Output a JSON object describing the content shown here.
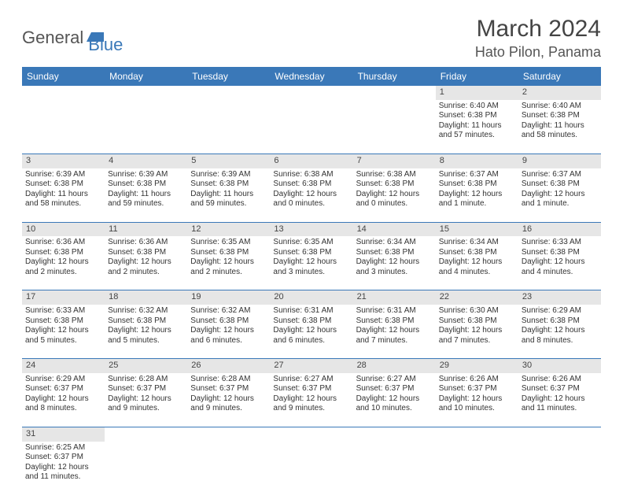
{
  "logo": {
    "part1": "General",
    "part2": "Blue"
  },
  "title": "March 2024",
  "location": "Hato Pilon, Panama",
  "colors": {
    "header_bg": "#3a78b8",
    "header_text": "#ffffff",
    "daynum_bg": "#e6e6e6",
    "border": "#3a78b8",
    "text": "#333333"
  },
  "day_headers": [
    "Sunday",
    "Monday",
    "Tuesday",
    "Wednesday",
    "Thursday",
    "Friday",
    "Saturday"
  ],
  "weeks": [
    [
      {
        "blank": true
      },
      {
        "blank": true
      },
      {
        "blank": true
      },
      {
        "blank": true
      },
      {
        "blank": true
      },
      {
        "num": "1",
        "sunrise": "Sunrise: 6:40 AM",
        "sunset": "Sunset: 6:38 PM",
        "daylight": "Daylight: 11 hours and 57 minutes."
      },
      {
        "num": "2",
        "sunrise": "Sunrise: 6:40 AM",
        "sunset": "Sunset: 6:38 PM",
        "daylight": "Daylight: 11 hours and 58 minutes."
      }
    ],
    [
      {
        "num": "3",
        "sunrise": "Sunrise: 6:39 AM",
        "sunset": "Sunset: 6:38 PM",
        "daylight": "Daylight: 11 hours and 58 minutes."
      },
      {
        "num": "4",
        "sunrise": "Sunrise: 6:39 AM",
        "sunset": "Sunset: 6:38 PM",
        "daylight": "Daylight: 11 hours and 59 minutes."
      },
      {
        "num": "5",
        "sunrise": "Sunrise: 6:39 AM",
        "sunset": "Sunset: 6:38 PM",
        "daylight": "Daylight: 11 hours and 59 minutes."
      },
      {
        "num": "6",
        "sunrise": "Sunrise: 6:38 AM",
        "sunset": "Sunset: 6:38 PM",
        "daylight": "Daylight: 12 hours and 0 minutes."
      },
      {
        "num": "7",
        "sunrise": "Sunrise: 6:38 AM",
        "sunset": "Sunset: 6:38 PM",
        "daylight": "Daylight: 12 hours and 0 minutes."
      },
      {
        "num": "8",
        "sunrise": "Sunrise: 6:37 AM",
        "sunset": "Sunset: 6:38 PM",
        "daylight": "Daylight: 12 hours and 1 minute."
      },
      {
        "num": "9",
        "sunrise": "Sunrise: 6:37 AM",
        "sunset": "Sunset: 6:38 PM",
        "daylight": "Daylight: 12 hours and 1 minute."
      }
    ],
    [
      {
        "num": "10",
        "sunrise": "Sunrise: 6:36 AM",
        "sunset": "Sunset: 6:38 PM",
        "daylight": "Daylight: 12 hours and 2 minutes."
      },
      {
        "num": "11",
        "sunrise": "Sunrise: 6:36 AM",
        "sunset": "Sunset: 6:38 PM",
        "daylight": "Daylight: 12 hours and 2 minutes."
      },
      {
        "num": "12",
        "sunrise": "Sunrise: 6:35 AM",
        "sunset": "Sunset: 6:38 PM",
        "daylight": "Daylight: 12 hours and 2 minutes."
      },
      {
        "num": "13",
        "sunrise": "Sunrise: 6:35 AM",
        "sunset": "Sunset: 6:38 PM",
        "daylight": "Daylight: 12 hours and 3 minutes."
      },
      {
        "num": "14",
        "sunrise": "Sunrise: 6:34 AM",
        "sunset": "Sunset: 6:38 PM",
        "daylight": "Daylight: 12 hours and 3 minutes."
      },
      {
        "num": "15",
        "sunrise": "Sunrise: 6:34 AM",
        "sunset": "Sunset: 6:38 PM",
        "daylight": "Daylight: 12 hours and 4 minutes."
      },
      {
        "num": "16",
        "sunrise": "Sunrise: 6:33 AM",
        "sunset": "Sunset: 6:38 PM",
        "daylight": "Daylight: 12 hours and 4 minutes."
      }
    ],
    [
      {
        "num": "17",
        "sunrise": "Sunrise: 6:33 AM",
        "sunset": "Sunset: 6:38 PM",
        "daylight": "Daylight: 12 hours and 5 minutes."
      },
      {
        "num": "18",
        "sunrise": "Sunrise: 6:32 AM",
        "sunset": "Sunset: 6:38 PM",
        "daylight": "Daylight: 12 hours and 5 minutes."
      },
      {
        "num": "19",
        "sunrise": "Sunrise: 6:32 AM",
        "sunset": "Sunset: 6:38 PM",
        "daylight": "Daylight: 12 hours and 6 minutes."
      },
      {
        "num": "20",
        "sunrise": "Sunrise: 6:31 AM",
        "sunset": "Sunset: 6:38 PM",
        "daylight": "Daylight: 12 hours and 6 minutes."
      },
      {
        "num": "21",
        "sunrise": "Sunrise: 6:31 AM",
        "sunset": "Sunset: 6:38 PM",
        "daylight": "Daylight: 12 hours and 7 minutes."
      },
      {
        "num": "22",
        "sunrise": "Sunrise: 6:30 AM",
        "sunset": "Sunset: 6:38 PM",
        "daylight": "Daylight: 12 hours and 7 minutes."
      },
      {
        "num": "23",
        "sunrise": "Sunrise: 6:29 AM",
        "sunset": "Sunset: 6:38 PM",
        "daylight": "Daylight: 12 hours and 8 minutes."
      }
    ],
    [
      {
        "num": "24",
        "sunrise": "Sunrise: 6:29 AM",
        "sunset": "Sunset: 6:37 PM",
        "daylight": "Daylight: 12 hours and 8 minutes."
      },
      {
        "num": "25",
        "sunrise": "Sunrise: 6:28 AM",
        "sunset": "Sunset: 6:37 PM",
        "daylight": "Daylight: 12 hours and 9 minutes."
      },
      {
        "num": "26",
        "sunrise": "Sunrise: 6:28 AM",
        "sunset": "Sunset: 6:37 PM",
        "daylight": "Daylight: 12 hours and 9 minutes."
      },
      {
        "num": "27",
        "sunrise": "Sunrise: 6:27 AM",
        "sunset": "Sunset: 6:37 PM",
        "daylight": "Daylight: 12 hours and 9 minutes."
      },
      {
        "num": "28",
        "sunrise": "Sunrise: 6:27 AM",
        "sunset": "Sunset: 6:37 PM",
        "daylight": "Daylight: 12 hours and 10 minutes."
      },
      {
        "num": "29",
        "sunrise": "Sunrise: 6:26 AM",
        "sunset": "Sunset: 6:37 PM",
        "daylight": "Daylight: 12 hours and 10 minutes."
      },
      {
        "num": "30",
        "sunrise": "Sunrise: 6:26 AM",
        "sunset": "Sunset: 6:37 PM",
        "daylight": "Daylight: 12 hours and 11 minutes."
      }
    ],
    [
      {
        "num": "31",
        "sunrise": "Sunrise: 6:25 AM",
        "sunset": "Sunset: 6:37 PM",
        "daylight": "Daylight: 12 hours and 11 minutes."
      },
      {
        "blank": true
      },
      {
        "blank": true
      },
      {
        "blank": true
      },
      {
        "blank": true
      },
      {
        "blank": true
      },
      {
        "blank": true
      }
    ]
  ]
}
